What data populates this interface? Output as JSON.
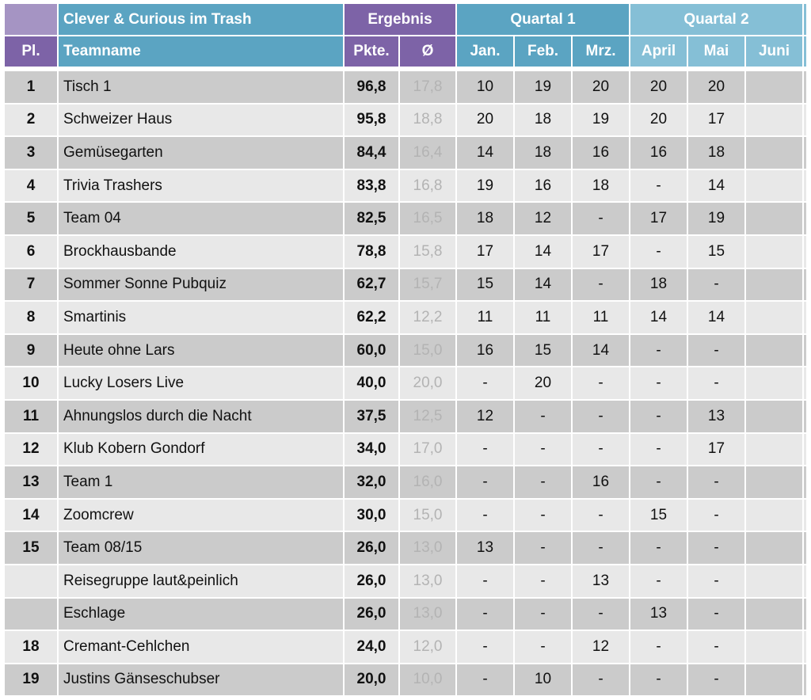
{
  "header": {
    "title": "Clever & Curious im Trash",
    "ergebnis": "Ergebnis",
    "quartal1": "Quartal 1",
    "quartal2": "Quartal 2",
    "pl": "Pl.",
    "teamname": "Teamname",
    "pkte": "Pkte.",
    "avg": "Ø",
    "months": [
      "Jan.",
      "Feb.",
      "Mrz.",
      "April",
      "Mai",
      "Juni"
    ]
  },
  "rows": [
    {
      "pl": "1",
      "name": "Tisch 1",
      "pkte": "96,8",
      "avg": "17,8",
      "m": [
        "10",
        "19",
        "20",
        "20",
        "20",
        ""
      ]
    },
    {
      "pl": "2",
      "name": "Schweizer Haus",
      "pkte": "95,8",
      "avg": "18,8",
      "m": [
        "20",
        "18",
        "19",
        "20",
        "17",
        ""
      ]
    },
    {
      "pl": "3",
      "name": "Gemüsegarten",
      "pkte": "84,4",
      "avg": "16,4",
      "m": [
        "14",
        "18",
        "16",
        "16",
        "18",
        ""
      ]
    },
    {
      "pl": "4",
      "name": "Trivia Trashers",
      "pkte": "83,8",
      "avg": "16,8",
      "m": [
        "19",
        "16",
        "18",
        "-",
        "14",
        ""
      ]
    },
    {
      "pl": "5",
      "name": "Team 04",
      "pkte": "82,5",
      "avg": "16,5",
      "m": [
        "18",
        "12",
        "-",
        "17",
        "19",
        ""
      ]
    },
    {
      "pl": "6",
      "name": "Brockhausbande",
      "pkte": "78,8",
      "avg": "15,8",
      "m": [
        "17",
        "14",
        "17",
        "-",
        "15",
        ""
      ]
    },
    {
      "pl": "7",
      "name": "Sommer Sonne Pubquiz",
      "pkte": "62,7",
      "avg": "15,7",
      "m": [
        "15",
        "14",
        "-",
        "18",
        "-",
        ""
      ]
    },
    {
      "pl": "8",
      "name": "Smartinis",
      "pkte": "62,2",
      "avg": "12,2",
      "m": [
        "11",
        "11",
        "11",
        "14",
        "14",
        ""
      ]
    },
    {
      "pl": "9",
      "name": "Heute ohne Lars",
      "pkte": "60,0",
      "avg": "15,0",
      "m": [
        "16",
        "15",
        "14",
        "-",
        "-",
        ""
      ]
    },
    {
      "pl": "10",
      "name": "Lucky Losers Live",
      "pkte": "40,0",
      "avg": "20,0",
      "m": [
        "-",
        "20",
        "-",
        "-",
        "-",
        ""
      ]
    },
    {
      "pl": "11",
      "name": "Ahnungslos durch die Nacht",
      "pkte": "37,5",
      "avg": "12,5",
      "m": [
        "12",
        "-",
        "-",
        "-",
        "13",
        ""
      ]
    },
    {
      "pl": "12",
      "name": "Klub Kobern Gondorf",
      "pkte": "34,0",
      "avg": "17,0",
      "m": [
        "-",
        "-",
        "-",
        "-",
        "17",
        ""
      ]
    },
    {
      "pl": "13",
      "name": "Team 1",
      "pkte": "32,0",
      "avg": "16,0",
      "m": [
        "-",
        "-",
        "16",
        "-",
        "-",
        ""
      ]
    },
    {
      "pl": "14",
      "name": "Zoomcrew",
      "pkte": "30,0",
      "avg": "15,0",
      "m": [
        "-",
        "-",
        "-",
        "15",
        "-",
        ""
      ]
    },
    {
      "pl": "15",
      "name": "Team 08/15",
      "pkte": "26,0",
      "avg": "13,0",
      "m": [
        "13",
        "-",
        "-",
        "-",
        "-",
        ""
      ]
    },
    {
      "pl": "",
      "name": "Reisegruppe laut&peinlich",
      "pkte": "26,0",
      "avg": "13,0",
      "m": [
        "-",
        "-",
        "13",
        "-",
        "-",
        ""
      ]
    },
    {
      "pl": "",
      "name": "Eschlage",
      "pkte": "26,0",
      "avg": "13,0",
      "m": [
        "-",
        "-",
        "-",
        "13",
        "-",
        ""
      ]
    },
    {
      "pl": "18",
      "name": "Cremant-Cehlchen",
      "pkte": "24,0",
      "avg": "12,0",
      "m": [
        "-",
        "-",
        "12",
        "-",
        "-",
        ""
      ]
    },
    {
      "pl": "19",
      "name": "Justins Gänseschubser",
      "pkte": "20,0",
      "avg": "10,0",
      "m": [
        "-",
        "10",
        "-",
        "-",
        "-",
        ""
      ]
    }
  ],
  "colors": {
    "purple_light": "#a594c3",
    "purple": "#7d63a7",
    "blue": "#5ba4c2",
    "blue_light": "#85bfd6",
    "row_dark": "#cbcbcb",
    "row_light": "#e8e8e8",
    "avg_text": "#b3b3b3"
  }
}
